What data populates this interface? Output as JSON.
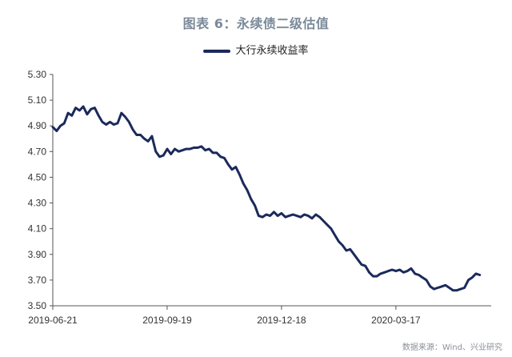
{
  "chart_data": {
    "type": "line",
    "title": "图表 6：永续债二级估值",
    "xlabel": "",
    "ylabel": "",
    "ylim": [
      3.5,
      5.3
    ],
    "yticks": [
      "5.30",
      "5.10",
      "4.90",
      "4.70",
      "4.50",
      "4.30",
      "4.10",
      "3.90",
      "3.70",
      "3.50"
    ],
    "xlim": [
      "2019-06-21",
      "2020-05-31"
    ],
    "xticks": [
      "2019-06-21",
      "2019-09-19",
      "2019-12-18",
      "2020-03-17"
    ],
    "legend_position": "top-center",
    "grid": false,
    "series": [
      {
        "name": "大行永续收益率",
        "color": "#1b2a5c",
        "points": [
          [
            "2019-06-21",
            4.89
          ],
          [
            "2019-06-24",
            4.86
          ],
          [
            "2019-06-27",
            4.9
          ],
          [
            "2019-06-30",
            4.92
          ],
          [
            "2019-07-03",
            5.0
          ],
          [
            "2019-07-06",
            4.98
          ],
          [
            "2019-07-09",
            5.04
          ],
          [
            "2019-07-12",
            5.02
          ],
          [
            "2019-07-15",
            5.05
          ],
          [
            "2019-07-18",
            4.99
          ],
          [
            "2019-07-21",
            5.03
          ],
          [
            "2019-07-24",
            5.04
          ],
          [
            "2019-07-27",
            4.98
          ],
          [
            "2019-07-30",
            4.93
          ],
          [
            "2019-08-02",
            4.91
          ],
          [
            "2019-08-05",
            4.93
          ],
          [
            "2019-08-08",
            4.91
          ],
          [
            "2019-08-11",
            4.92
          ],
          [
            "2019-08-14",
            5.0
          ],
          [
            "2019-08-17",
            4.97
          ],
          [
            "2019-08-20",
            4.93
          ],
          [
            "2019-08-23",
            4.87
          ],
          [
            "2019-08-26",
            4.83
          ],
          [
            "2019-08-29",
            4.83
          ],
          [
            "2019-09-01",
            4.8
          ],
          [
            "2019-09-04",
            4.78
          ],
          [
            "2019-09-07",
            4.82
          ],
          [
            "2019-09-10",
            4.7
          ],
          [
            "2019-09-13",
            4.66
          ],
          [
            "2019-09-16",
            4.67
          ],
          [
            "2019-09-19",
            4.72
          ],
          [
            "2019-09-22",
            4.68
          ],
          [
            "2019-09-25",
            4.72
          ],
          [
            "2019-09-28",
            4.7
          ],
          [
            "2019-10-01",
            4.71
          ],
          [
            "2019-10-04",
            4.72
          ],
          [
            "2019-10-07",
            4.72
          ],
          [
            "2019-10-10",
            4.73
          ],
          [
            "2019-10-13",
            4.73
          ],
          [
            "2019-10-16",
            4.74
          ],
          [
            "2019-10-19",
            4.71
          ],
          [
            "2019-10-22",
            4.72
          ],
          [
            "2019-10-25",
            4.69
          ],
          [
            "2019-10-28",
            4.69
          ],
          [
            "2019-10-31",
            4.66
          ],
          [
            "2019-11-03",
            4.65
          ],
          [
            "2019-11-06",
            4.6
          ],
          [
            "2019-11-09",
            4.56
          ],
          [
            "2019-11-12",
            4.58
          ],
          [
            "2019-11-15",
            4.52
          ],
          [
            "2019-11-18",
            4.45
          ],
          [
            "2019-11-21",
            4.4
          ],
          [
            "2019-11-24",
            4.33
          ],
          [
            "2019-11-27",
            4.28
          ],
          [
            "2019-11-30",
            4.2
          ],
          [
            "2019-12-03",
            4.19
          ],
          [
            "2019-12-06",
            4.21
          ],
          [
            "2019-12-09",
            4.2
          ],
          [
            "2019-12-12",
            4.23
          ],
          [
            "2019-12-15",
            4.2
          ],
          [
            "2019-12-18",
            4.22
          ],
          [
            "2019-12-21",
            4.19
          ],
          [
            "2019-12-24",
            4.2
          ],
          [
            "2019-12-27",
            4.21
          ],
          [
            "2019-12-30",
            4.2
          ],
          [
            "2020-01-02",
            4.19
          ],
          [
            "2020-01-05",
            4.21
          ],
          [
            "2020-01-08",
            4.2
          ],
          [
            "2020-01-11",
            4.18
          ],
          [
            "2020-01-14",
            4.21
          ],
          [
            "2020-01-17",
            4.19
          ],
          [
            "2020-01-20",
            4.16
          ],
          [
            "2020-01-23",
            4.13
          ],
          [
            "2020-01-26",
            4.1
          ],
          [
            "2020-01-29",
            4.05
          ],
          [
            "2020-02-01",
            4.0
          ],
          [
            "2020-02-04",
            3.97
          ],
          [
            "2020-02-07",
            3.93
          ],
          [
            "2020-02-10",
            3.94
          ],
          [
            "2020-02-13",
            3.9
          ],
          [
            "2020-02-16",
            3.86
          ],
          [
            "2020-02-19",
            3.82
          ],
          [
            "2020-02-22",
            3.81
          ],
          [
            "2020-02-25",
            3.76
          ],
          [
            "2020-02-28",
            3.73
          ],
          [
            "2020-03-02",
            3.73
          ],
          [
            "2020-03-05",
            3.75
          ],
          [
            "2020-03-08",
            3.76
          ],
          [
            "2020-03-11",
            3.77
          ],
          [
            "2020-03-14",
            3.78
          ],
          [
            "2020-03-17",
            3.77
          ],
          [
            "2020-03-20",
            3.78
          ],
          [
            "2020-03-23",
            3.76
          ],
          [
            "2020-03-26",
            3.77
          ],
          [
            "2020-03-29",
            3.79
          ],
          [
            "2020-04-01",
            3.75
          ],
          [
            "2020-04-04",
            3.74
          ],
          [
            "2020-04-07",
            3.72
          ],
          [
            "2020-04-10",
            3.7
          ],
          [
            "2020-04-13",
            3.65
          ],
          [
            "2020-04-16",
            3.63
          ],
          [
            "2020-04-19",
            3.64
          ],
          [
            "2020-04-22",
            3.65
          ],
          [
            "2020-04-25",
            3.66
          ],
          [
            "2020-04-28",
            3.64
          ],
          [
            "2020-05-01",
            3.62
          ],
          [
            "2020-05-04",
            3.62
          ],
          [
            "2020-05-07",
            3.63
          ],
          [
            "2020-05-10",
            3.64
          ],
          [
            "2020-05-13",
            3.7
          ],
          [
            "2020-05-16",
            3.72
          ],
          [
            "2020-05-19",
            3.75
          ],
          [
            "2020-05-22",
            3.74
          ]
        ]
      }
    ]
  },
  "source_note": "数据来源：Wind、兴业研究"
}
